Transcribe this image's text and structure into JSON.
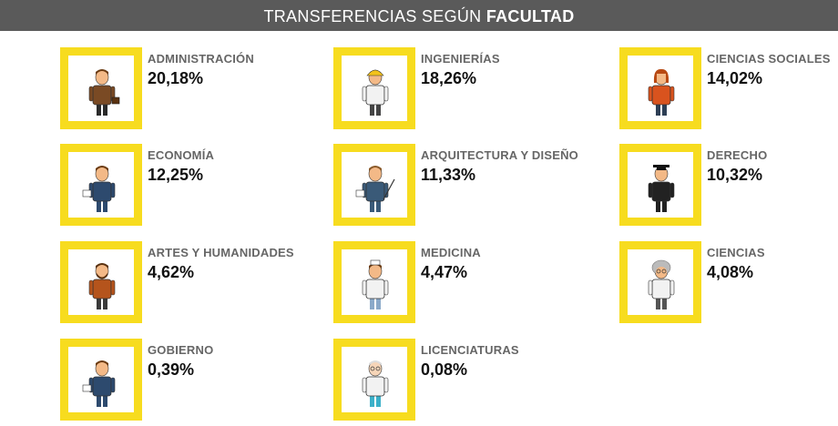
{
  "header": {
    "title_light": "TRANSFERENCIAS SEGÚN",
    "title_bold": "FACULTAD"
  },
  "colors": {
    "frame": "#f7dc1f",
    "header_bg": "#5a5a5a"
  },
  "chart_data": {
    "type": "table",
    "title": "TRANSFERENCIAS SEGÚN FACULTAD",
    "categories": [
      "ADMINISTRACIÓN",
      "INGENIERÍAS",
      "CIENCIAS SOCIALES",
      "ECONOMÍA",
      "ARQUITECTURA Y DISEÑO",
      "DERECHO",
      "ARTES Y HUMANIDADES",
      "MEDICINA",
      "CIENCIAS",
      "GOBIERNO",
      "LICENCIATURAS"
    ],
    "values": [
      20.18,
      18.26,
      14.02,
      12.25,
      11.33,
      10.32,
      4.62,
      4.47,
      4.08,
      0.39,
      0.08
    ],
    "unit": "%"
  },
  "items": [
    {
      "label": "ADMINISTRACIÓN",
      "value": "20,18%",
      "icon": "businessman-icon"
    },
    {
      "label": "INGENIERÍAS",
      "value": "18,26%",
      "icon": "engineer-icon"
    },
    {
      "label": "CIENCIAS SOCIALES",
      "value": "14,02%",
      "icon": "social-scientist-icon"
    },
    {
      "label": "ECONOMÍA",
      "value": "12,25%",
      "icon": "economist-icon"
    },
    {
      "label": "ARQUITECTURA Y DISEÑO",
      "value": "11,33%",
      "icon": "architect-icon"
    },
    {
      "label": "DERECHO",
      "value": "10,32%",
      "icon": "lawyer-icon"
    },
    {
      "label": "ARTES Y HUMANIDADES",
      "value": "4,62%",
      "icon": "artist-icon"
    },
    {
      "label": "MEDICINA",
      "value": "4,47%",
      "icon": "doctor-icon"
    },
    {
      "label": "CIENCIAS",
      "value": "4,08%",
      "icon": "scientist-icon"
    },
    {
      "label": "GOBIERNO",
      "value": "0,39%",
      "icon": "politician-icon"
    },
    {
      "label": "LICENCIATURAS",
      "value": "0,08%",
      "icon": "graduate-icon"
    }
  ]
}
